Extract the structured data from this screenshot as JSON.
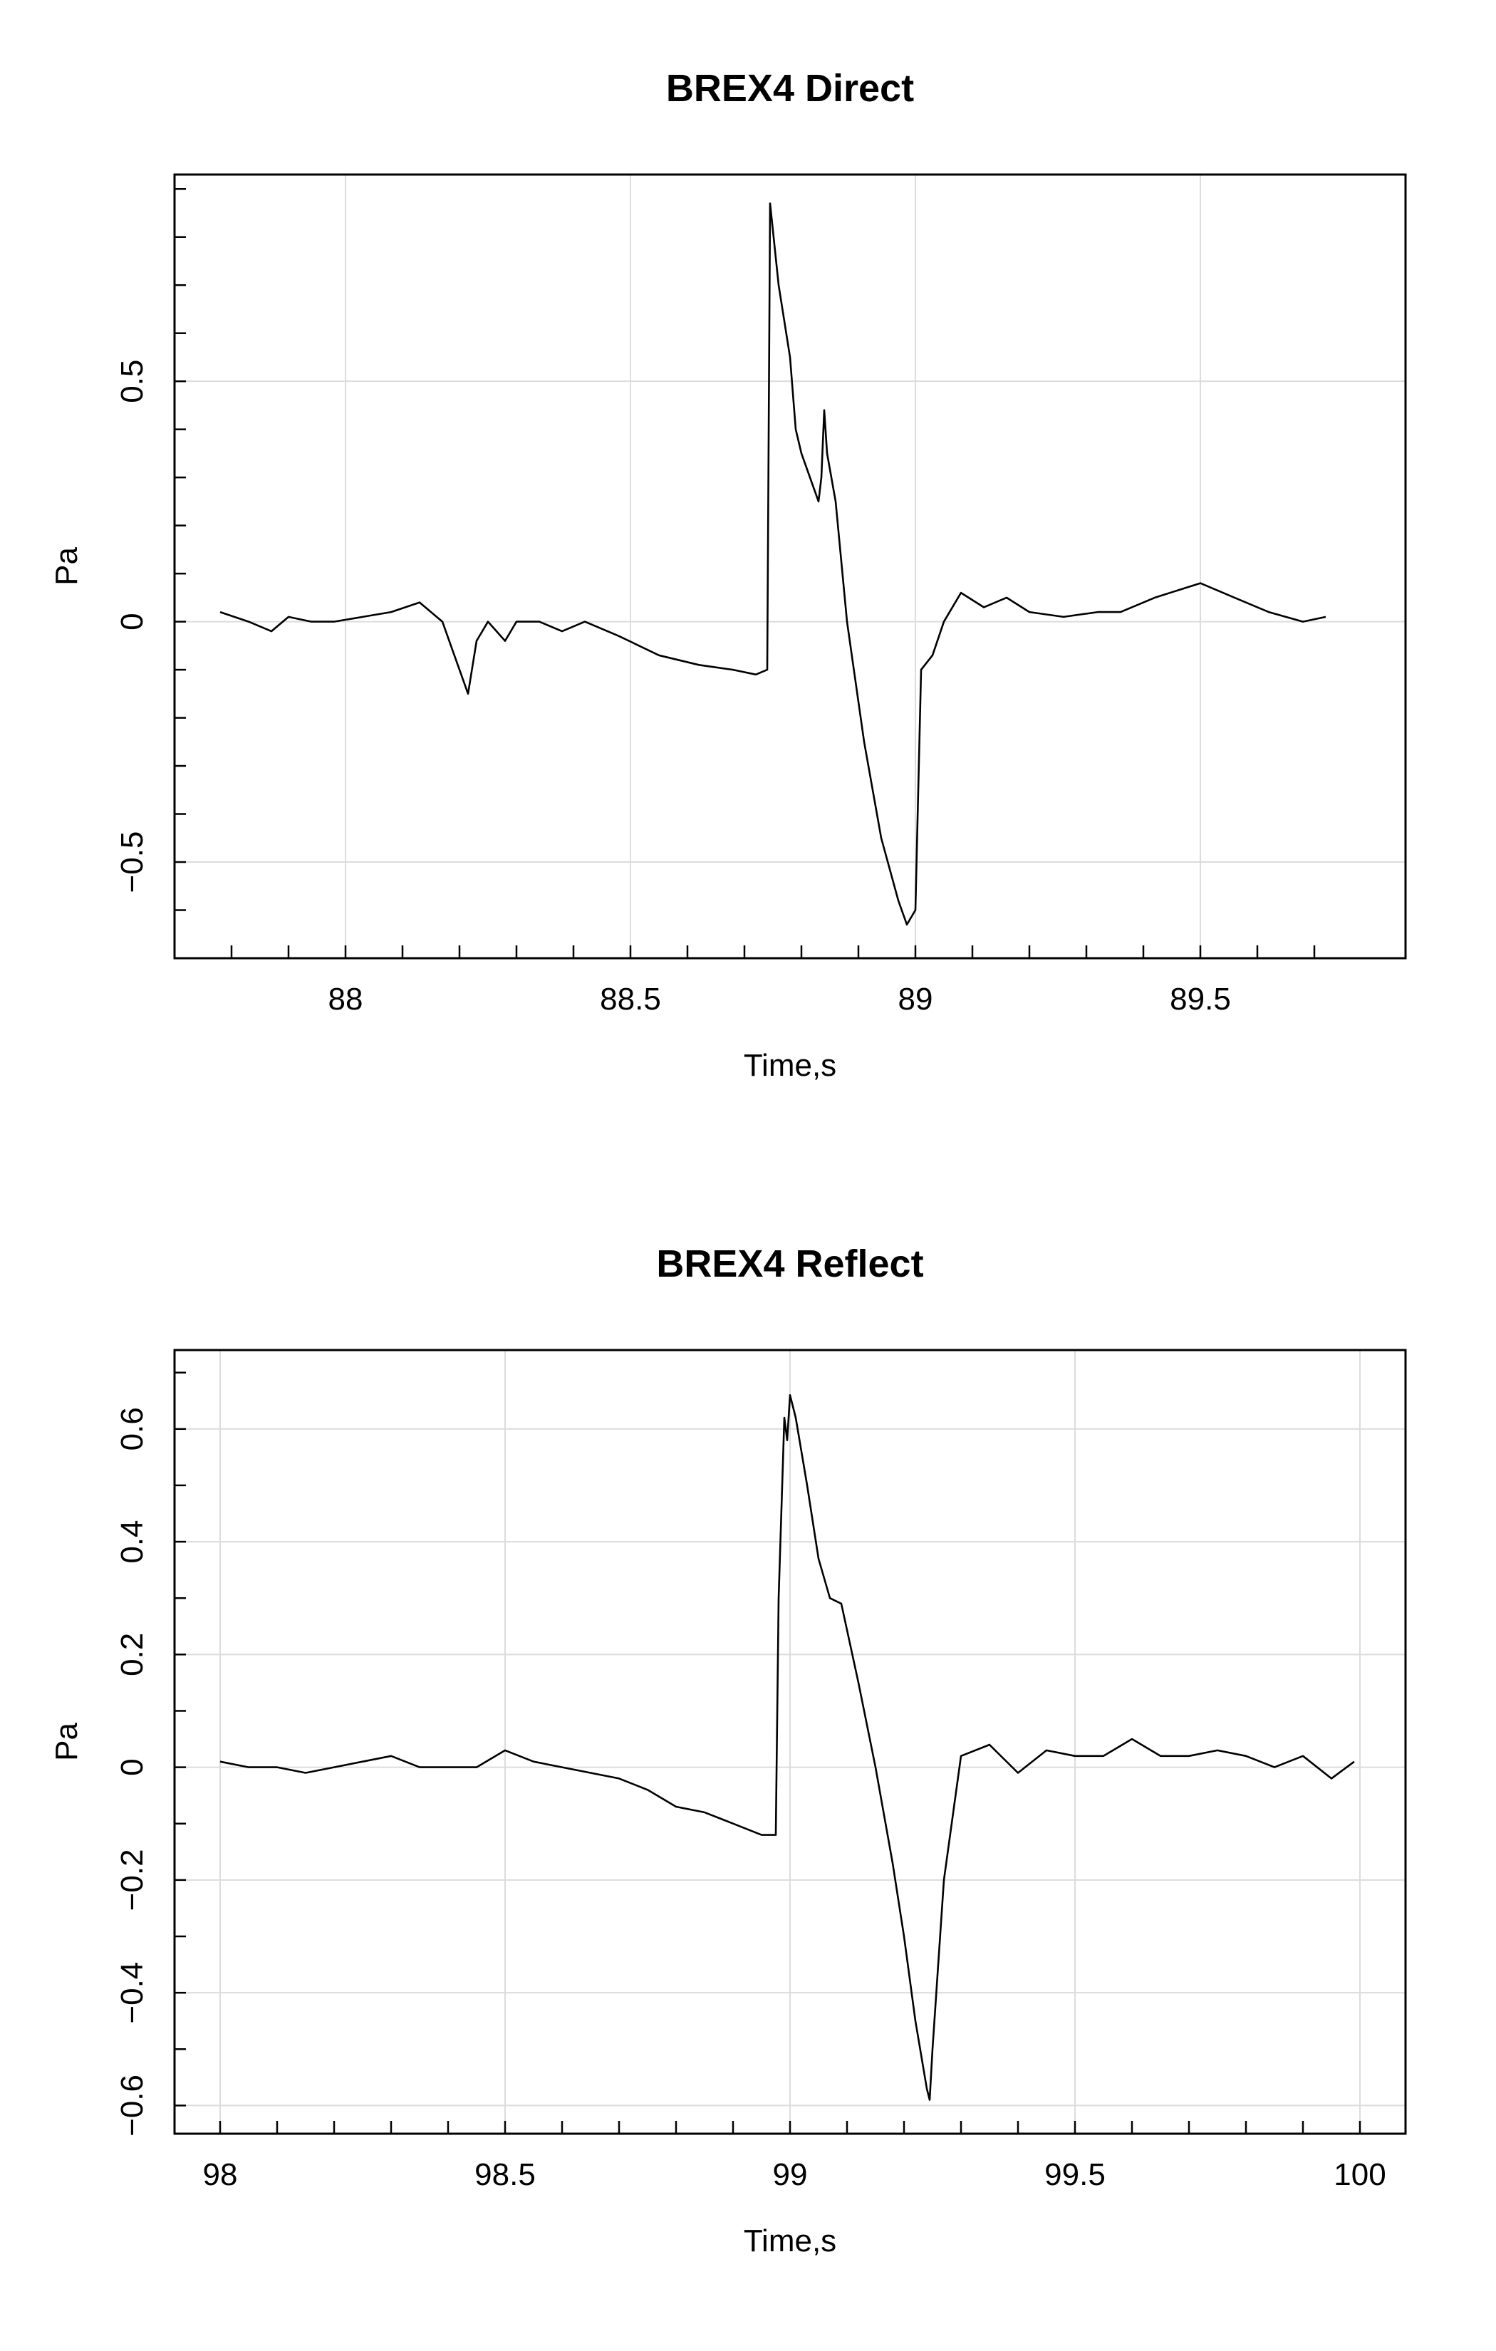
{
  "chart_data": [
    {
      "type": "line",
      "title": "BREX4 Direct",
      "xlabel": "Time,s",
      "ylabel": "Pa",
      "xlim": [
        87.7,
        89.86
      ],
      "ylim": [
        -0.7,
        0.93
      ],
      "x_ticks": [
        88,
        88.5,
        89,
        89.5
      ],
      "x_minor_step": 0.1,
      "y_ticks": [
        -0.5,
        0,
        0.5
      ],
      "y_minor_step": 0.1,
      "y_tick_labels": [
        "−0.5",
        "0",
        "0.5"
      ],
      "grid": true,
      "series": [
        {
          "x": [
            87.78,
            87.83,
            87.87,
            87.9,
            87.94,
            87.98,
            88.03,
            88.08,
            88.13,
            88.17,
            88.2,
            88.215,
            88.23,
            88.25,
            88.28,
            88.3,
            88.34,
            88.38,
            88.42,
            88.48,
            88.55,
            88.62,
            88.68,
            88.72,
            88.74,
            88.745,
            88.76,
            88.78,
            88.79,
            88.8,
            88.83,
            88.835,
            88.84,
            88.845,
            88.86,
            88.88,
            88.91,
            88.94,
            88.97,
            88.985,
            89.0,
            89.01,
            89.03,
            89.05,
            89.08,
            89.12,
            89.16,
            89.2,
            89.26,
            89.32,
            89.36,
            89.42,
            89.5,
            89.56,
            89.62,
            89.68,
            89.72
          ],
          "y": [
            0.02,
            0.0,
            -0.02,
            0.01,
            0.0,
            0.0,
            0.01,
            0.02,
            0.04,
            0.0,
            -0.1,
            -0.15,
            -0.04,
            0.0,
            -0.04,
            0.0,
            0.0,
            -0.02,
            0.0,
            -0.03,
            -0.07,
            -0.09,
            -0.1,
            -0.11,
            -0.1,
            0.87,
            0.7,
            0.55,
            0.4,
            0.35,
            0.25,
            0.3,
            0.44,
            0.35,
            0.25,
            0.0,
            -0.25,
            -0.45,
            -0.58,
            -0.63,
            -0.6,
            -0.1,
            -0.07,
            0.0,
            0.06,
            0.03,
            0.05,
            0.02,
            0.01,
            0.02,
            0.02,
            0.05,
            0.08,
            0.05,
            0.02,
            0.0,
            0.01
          ]
        }
      ]
    },
    {
      "type": "line",
      "title": "BREX4 Reflect",
      "xlabel": "Time,s",
      "ylabel": "Pa",
      "xlim": [
        97.92,
        100.08
      ],
      "ylim": [
        -0.65,
        0.74
      ],
      "x_ticks": [
        98,
        98.5,
        99,
        99.5,
        100
      ],
      "x_minor_step": 0.1,
      "y_ticks": [
        -0.6,
        -0.4,
        -0.2,
        0,
        0.2,
        0.4,
        0.6
      ],
      "y_minor_step": 0.1,
      "y_tick_labels": [
        "−0.6",
        "−0.4",
        "−0.2",
        "0",
        "0.2",
        "0.4",
        "0.6"
      ],
      "grid": true,
      "series": [
        {
          "x": [
            98.0,
            98.05,
            98.1,
            98.15,
            98.2,
            98.25,
            98.3,
            98.35,
            98.4,
            98.45,
            98.5,
            98.55,
            98.6,
            98.65,
            98.7,
            98.75,
            98.8,
            98.85,
            98.9,
            98.95,
            98.975,
            98.98,
            98.99,
            98.995,
            99.0,
            99.01,
            99.03,
            99.05,
            99.07,
            99.09,
            99.12,
            99.15,
            99.18,
            99.2,
            99.22,
            99.24,
            99.245,
            99.25,
            99.27,
            99.3,
            99.35,
            99.4,
            99.45,
            99.5,
            99.55,
            99.6,
            99.65,
            99.7,
            99.75,
            99.8,
            99.85,
            99.9,
            99.95,
            99.99
          ],
          "y": [
            0.01,
            0.0,
            0.0,
            -0.01,
            0.0,
            0.01,
            0.02,
            0.0,
            0.0,
            0.0,
            0.03,
            0.01,
            0.0,
            -0.01,
            -0.02,
            -0.04,
            -0.07,
            -0.08,
            -0.1,
            -0.12,
            -0.12,
            0.3,
            0.62,
            0.58,
            0.66,
            0.62,
            0.5,
            0.37,
            0.3,
            0.29,
            0.15,
            0.0,
            -0.17,
            -0.3,
            -0.45,
            -0.57,
            -0.59,
            -0.5,
            -0.2,
            0.02,
            0.04,
            -0.01,
            0.03,
            0.02,
            0.02,
            0.05,
            0.02,
            0.02,
            0.03,
            0.02,
            0.0,
            0.02,
            -0.02,
            0.01
          ]
        }
      ]
    }
  ]
}
